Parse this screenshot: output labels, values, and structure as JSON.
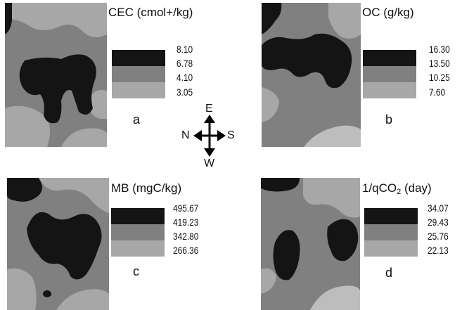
{
  "colors": {
    "high": "#141414",
    "mid_high": "#808080",
    "mid_low": "#a7a7a7",
    "low": "#bdbdbd"
  },
  "panels": [
    {
      "id": "a",
      "title": "CEC (cmol+/kg)",
      "letter": "a",
      "legend": [
        "8.10",
        "6.78",
        "4.10",
        "3.05"
      ]
    },
    {
      "id": "b",
      "title": "OC (g/kg)",
      "letter": "b",
      "legend": [
        "16.30",
        "13.50",
        "10.25",
        "7.60"
      ]
    },
    {
      "id": "c",
      "title": "MB (mgC/kg)",
      "letter": "c",
      "legend": [
        "495.67",
        "419.23",
        "342.80",
        "266.36"
      ]
    },
    {
      "id": "d",
      "title_prefix": "1/qCO",
      "title_sub": "2",
      "title_suffix": " (day)",
      "letter": "d",
      "legend": [
        "34.07",
        "29.43",
        "25.76",
        "22.13"
      ]
    }
  ],
  "compass": {
    "north": "N",
    "south": "S",
    "east": "E",
    "west": "W"
  }
}
